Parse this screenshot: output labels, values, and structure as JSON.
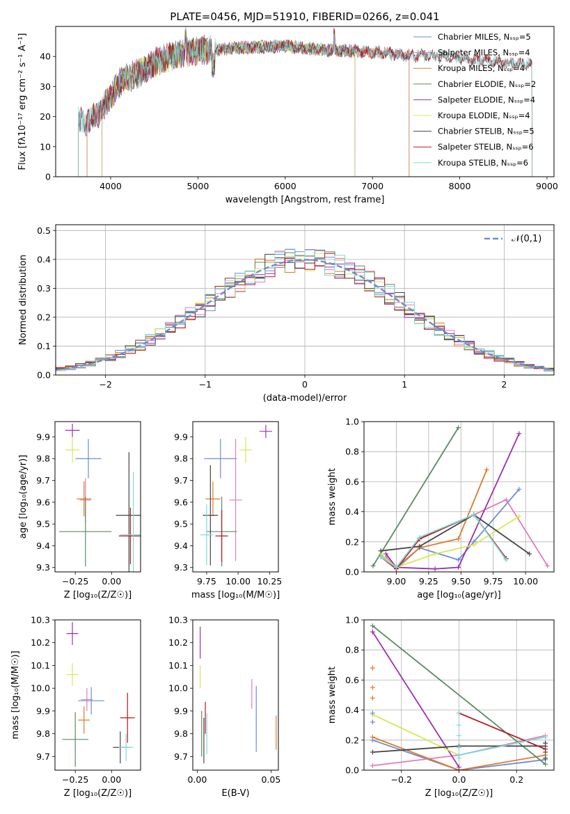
{
  "title": "PLATE=0456, MJD=51910, FIBERID=0266, z=0.041",
  "colors": {
    "chabrier_miles": "#6a8bd9",
    "salpeter_miles": "#e27cb8",
    "kroupa_miles": "#e07a28",
    "chabrier_elodie": "#5a8a64",
    "salpeter_elodie": "#9a2fb0",
    "kroupa_elodie": "#d5e84f",
    "chabrier_stelib": "#444444",
    "salpeter_stelib": "#b8161e",
    "kroupa_stelib": "#7fd9d9"
  },
  "chart_data": [
    {
      "id": "spectrum",
      "type": "line",
      "xlabel": "wavelength [Angstrom, rest frame]",
      "ylabel": "Flux [fλ10⁻¹⁷ erg cm⁻² s⁻¹ A⁻¹]",
      "xlim": [
        3370,
        9080
      ],
      "ylim": [
        0,
        50
      ],
      "xticks": [
        4000,
        5000,
        6000,
        7000,
        8000,
        9000
      ],
      "yticks": [
        0,
        10,
        20,
        30,
        40
      ],
      "legend_position": "top-right",
      "series": [
        {
          "name": "Chabrier MILES, Nₛₛₚ=5",
          "color_key": "chabrier_miles",
          "x_range": [
            3730,
            7420
          ]
        },
        {
          "name": "Salpeter MILES, Nₛₛₚ=4",
          "color_key": "salpeter_miles",
          "x_range": [
            3730,
            7420
          ]
        },
        {
          "name": "Kroupa MILES, Nₛₛₚ=4",
          "color_key": "kroupa_miles",
          "x_range": [
            3730,
            7420
          ]
        },
        {
          "name": "Chabrier ELODIE, Nₛₛₚ=2",
          "color_key": "chabrier_elodie",
          "x_range": [
            3900,
            6800
          ]
        },
        {
          "name": "Salpeter ELODIE, Nₛₛₚ=4",
          "color_key": "salpeter_elodie",
          "x_range": [
            3900,
            6800
          ]
        },
        {
          "name": "Kroupa ELODIE, Nₛₛₚ=4",
          "color_key": "kroupa_elodie",
          "x_range": [
            3900,
            6800
          ]
        },
        {
          "name": "Chabrier STELIB, Nₛₛₚ=5",
          "color_key": "chabrier_stelib",
          "x_range": [
            3630,
            8830
          ]
        },
        {
          "name": "Salpeter STELIB, Nₛₛₚ=6",
          "color_key": "salpeter_stelib",
          "x_range": [
            3630,
            8830
          ]
        },
        {
          "name": "Kroupa STELIB, Nₛₛₚ=6",
          "color_key": "kroupa_stelib",
          "x_range": [
            3630,
            8830
          ]
        }
      ],
      "continuum": {
        "x": [
          3620,
          3700,
          3800,
          3900,
          4000,
          4100,
          4200,
          4300,
          4400,
          4500,
          4700,
          5000,
          5300,
          5600,
          6000,
          6300,
          6600,
          7000,
          7400,
          7800,
          8200,
          8500,
          8830
        ],
        "y": [
          19,
          18,
          20,
          22,
          27,
          31,
          33,
          34,
          36,
          38,
          40,
          42,
          42.5,
          43,
          43.5,
          42.5,
          42,
          41.5,
          40.5,
          40,
          39,
          38,
          37.5
        ]
      },
      "drop_to_zero_x": [
        3730,
        3900,
        6800,
        7420
      ]
    },
    {
      "id": "residuals",
      "type": "step",
      "xlabel": "(data-model)/error",
      "ylabel": "Normed distribution",
      "xlim": [
        -2.5,
        2.5
      ],
      "ylim": [
        0,
        0.52
      ],
      "xticks": [
        -2,
        -1,
        0,
        1,
        2
      ],
      "yticks": [
        0.0,
        0.1,
        0.2,
        0.3,
        0.4,
        0.5
      ],
      "grid": true,
      "legend_position": "top-right",
      "gaussian_label": "𝒩(0,1)",
      "gaussian_color": "#6a8bd9",
      "bin_width": 0.1,
      "bins_start": -2.5,
      "base_density_histogram": [
        0.018,
        0.022,
        0.028,
        0.034,
        0.042,
        0.05,
        0.058,
        0.068,
        0.08,
        0.09,
        0.104,
        0.118,
        0.132,
        0.148,
        0.165,
        0.182,
        0.2,
        0.218,
        0.236,
        0.254,
        0.272,
        0.29,
        0.308,
        0.324,
        0.34,
        0.355,
        0.368,
        0.38,
        0.39,
        0.397,
        0.4,
        0.402,
        0.4,
        0.396,
        0.39,
        0.38,
        0.368,
        0.355,
        0.34,
        0.324,
        0.308,
        0.29,
        0.272,
        0.254,
        0.236,
        0.218,
        0.2,
        0.182,
        0.165,
        0.148,
        0.132
      ]
    },
    {
      "id": "age_vs_Z",
      "type": "errorbar",
      "xlabel": "Z [log₁₀(Z/Z☉)]",
      "ylabel": "age  [log₁₀(age/yr)]",
      "xlim": [
        -0.39,
        0.2
      ],
      "ylim": [
        9.28,
        9.97
      ],
      "xticks": [
        -0.25,
        0.0
      ],
      "xtick_labels": [
        "−0.25",
        "0.00"
      ],
      "yticks": [
        9.3,
        9.4,
        9.5,
        9.6,
        9.7,
        9.8,
        9.9
      ],
      "points": [
        {
          "k": "chabrier_miles",
          "x": -0.16,
          "xerr": 0.09,
          "y": 9.8,
          "yerr": 0.09
        },
        {
          "k": "salpeter_miles",
          "x": -0.18,
          "xerr": 0.04,
          "y": 9.61,
          "yerr": 0.1
        },
        {
          "k": "kroupa_miles",
          "x": -0.19,
          "xerr": 0.05,
          "y": 9.615,
          "yerr": 0.08
        },
        {
          "k": "chabrier_elodie",
          "x": -0.18,
          "xerr": 0.18,
          "y": 9.465,
          "yerr": 0.16
        },
        {
          "k": "salpeter_elodie",
          "x": -0.27,
          "xerr": 0.05,
          "y": 9.93,
          "yerr": 0.03
        },
        {
          "k": "kroupa_elodie",
          "x": -0.27,
          "xerr": 0.05,
          "y": 9.84,
          "yerr": 0.06
        },
        {
          "k": "chabrier_stelib",
          "x": 0.12,
          "xerr": 0.09,
          "y": 9.54,
          "yerr": 0.29
        },
        {
          "k": "salpeter_stelib",
          "x": 0.13,
          "xerr": 0.08,
          "y": 9.445,
          "yerr": 0.13
        },
        {
          "k": "kroupa_stelib",
          "x": 0.15,
          "xerr": 0.09,
          "y": 9.45,
          "yerr": 0.29
        }
      ]
    },
    {
      "id": "age_vs_mass",
      "type": "errorbar",
      "xlabel": "mass [log₁₀(M/M☉)]",
      "ylabel": "",
      "xlim": [
        9.64,
        10.32
      ],
      "ylim": [
        9.28,
        9.97
      ],
      "xticks": [
        9.75,
        10.0,
        10.25
      ],
      "xtick_labels": [
        "9.75",
        "10.00",
        "10.25"
      ],
      "yticks": [
        9.3,
        9.4,
        9.5,
        9.6,
        9.7,
        9.8,
        9.9
      ],
      "points": [
        {
          "k": "chabrier_miles",
          "x": 9.86,
          "xerr": 0.13,
          "y": 9.8,
          "yerr": 0.09
        },
        {
          "k": "salpeter_miles",
          "x": 9.98,
          "xerr": 0.05,
          "y": 9.61,
          "yerr": 0.28
        },
        {
          "k": "kroupa_miles",
          "x": 9.8,
          "xerr": 0.06,
          "y": 9.615,
          "yerr": 0.08
        },
        {
          "k": "chabrier_elodie",
          "x": 9.87,
          "xerr": 0.12,
          "y": 9.465,
          "yerr": 0.16
        },
        {
          "k": "salpeter_elodie",
          "x": 10.22,
          "xerr": 0.05,
          "y": 9.925,
          "yerr": 0.03
        },
        {
          "k": "kroupa_elodie",
          "x": 10.06,
          "xerr": 0.05,
          "y": 9.84,
          "yerr": 0.06
        },
        {
          "k": "chabrier_stelib",
          "x": 9.78,
          "xerr": 0.06,
          "y": 9.54,
          "yerr": 0.23
        },
        {
          "k": "salpeter_stelib",
          "x": 9.87,
          "xerr": 0.05,
          "y": 9.445,
          "yerr": 0.12
        },
        {
          "k": "kroupa_stelib",
          "x": 9.75,
          "xerr": 0.05,
          "y": 9.45,
          "yerr": 0.14
        }
      ]
    },
    {
      "id": "weight_vs_age",
      "type": "line",
      "xlabel": "age  [log₁₀(age/yr)]",
      "ylabel": "mass weight",
      "xlim": [
        8.75,
        10.22
      ],
      "ylim": [
        0,
        1
      ],
      "xticks": [
        9.0,
        9.25,
        9.5,
        9.75,
        10.0
      ],
      "xtick_labels": [
        "9.00",
        "9.25",
        "9.50",
        "9.75",
        "10.00"
      ],
      "yticks": [
        0.0,
        0.2,
        0.4,
        0.6,
        0.8,
        1.0
      ],
      "grid": true,
      "series": [
        {
          "k": "chabrier_miles",
          "x": [
            8.88,
            9.0,
            9.18,
            9.48,
            9.6,
            9.95
          ],
          "y": [
            0.12,
            0.02,
            0.16,
            0.08,
            0.2,
            0.55
          ]
        },
        {
          "k": "salpeter_miles",
          "x": [
            8.92,
            9.0,
            9.18,
            9.6,
            9.85,
            10.17
          ],
          "y": [
            0.1,
            0.03,
            0.22,
            0.38,
            0.48,
            0.04
          ]
        },
        {
          "k": "kroupa_miles",
          "x": [
            8.88,
            9.0,
            9.18,
            9.48,
            9.7
          ],
          "y": [
            0.1,
            0.03,
            0.16,
            0.22,
            0.68
          ]
        },
        {
          "k": "chabrier_elodie",
          "x": [
            8.82,
            9.48
          ],
          "y": [
            0.04,
            0.96
          ]
        },
        {
          "k": "salpeter_elodie",
          "x": [
            8.92,
            9.0,
            9.3,
            9.48,
            9.95
          ],
          "y": [
            0.12,
            0.03,
            0.02,
            0.03,
            0.92
          ]
        },
        {
          "k": "kroupa_elodie",
          "x": [
            8.88,
            9.0,
            9.3,
            9.6,
            9.95
          ],
          "y": [
            0.12,
            0.03,
            0.12,
            0.18,
            0.37
          ]
        },
        {
          "k": "chabrier_stelib",
          "x": [
            8.88,
            9.18,
            9.6,
            10.03
          ],
          "y": [
            0.14,
            0.17,
            0.38,
            0.12
          ]
        },
        {
          "k": "salpeter_stelib",
          "x": [
            8.88,
            9.0,
            9.18,
            9.6,
            9.85
          ],
          "y": [
            0.1,
            0.02,
            0.22,
            0.38,
            0.09
          ]
        },
        {
          "k": "kroupa_stelib",
          "x": [
            8.88,
            9.0,
            9.18,
            9.6,
            9.85
          ],
          "y": [
            0.1,
            0.03,
            0.23,
            0.38,
            0.08
          ]
        }
      ]
    },
    {
      "id": "mass_vs_Z",
      "type": "errorbar",
      "xlabel": "Z [log₁₀(Z/Z☉)]",
      "ylabel": "mass [log₁₀(M/M☉)]",
      "xlim": [
        -0.39,
        0.2
      ],
      "ylim": [
        9.64,
        10.3
      ],
      "xticks": [
        -0.25,
        0.0
      ],
      "xtick_labels": [
        "−0.25",
        "0.00"
      ],
      "yticks": [
        9.7,
        9.8,
        9.9,
        10.0,
        10.1,
        10.2,
        10.3
      ],
      "points": [
        {
          "k": "chabrier_miles",
          "x": -0.14,
          "xerr": 0.09,
          "y": 9.945,
          "yerr": 0.06
        },
        {
          "k": "salpeter_miles",
          "x": -0.17,
          "xerr": 0.04,
          "y": 9.95,
          "yerr": 0.05
        },
        {
          "k": "kroupa_miles",
          "x": -0.19,
          "xerr": 0.04,
          "y": 9.86,
          "yerr": 0.06
        },
        {
          "k": "chabrier_elodie",
          "x": -0.25,
          "xerr": 0.09,
          "y": 9.775,
          "yerr": 0.12
        },
        {
          "k": "salpeter_elodie",
          "x": -0.27,
          "xerr": 0.04,
          "y": 10.24,
          "yerr": 0.05
        },
        {
          "k": "kroupa_elodie",
          "x": -0.27,
          "xerr": 0.04,
          "y": 10.06,
          "yerr": 0.05
        },
        {
          "k": "chabrier_stelib",
          "x": 0.06,
          "xerr": 0.05,
          "y": 9.74,
          "yerr": 0.07
        },
        {
          "k": "salpeter_stelib",
          "x": 0.11,
          "xerr": 0.05,
          "y": 9.87,
          "yerr": 0.11
        },
        {
          "k": "kroupa_stelib",
          "x": 0.1,
          "xerr": 0.05,
          "y": 9.74,
          "yerr": 0.06
        }
      ]
    },
    {
      "id": "mass_vs_ebv",
      "type": "errorbar",
      "xlabel": "E(B-V)",
      "ylabel": "",
      "xlim": [
        -0.003,
        0.055
      ],
      "ylim": [
        9.64,
        10.3
      ],
      "xticks": [
        0.0,
        0.05
      ],
      "xtick_labels": [
        "0.00",
        "0.05"
      ],
      "yticks": [
        9.7,
        9.8,
        9.9,
        10.0,
        10.1,
        10.2,
        10.3
      ],
      "points": [
        {
          "k": "chabrier_miles",
          "x": 0.04,
          "xerr": 0.0,
          "y": 9.865,
          "yerr": 0.145
        },
        {
          "k": "salpeter_miles",
          "x": 0.037,
          "xerr": 0.0,
          "y": 9.975,
          "yerr": 0.065
        },
        {
          "k": "kroupa_miles",
          "x": 0.0535,
          "xerr": 0.0,
          "y": 9.805,
          "yerr": 0.075
        },
        {
          "k": "chabrier_elodie",
          "x": 0.003,
          "xerr": 0.0,
          "y": 9.8,
          "yerr": 0.1
        },
        {
          "k": "salpeter_elodie",
          "x": 0.002,
          "xerr": 0.0,
          "y": 10.2,
          "yerr": 0.07
        },
        {
          "k": "kroupa_elodie",
          "x": 0.002,
          "xerr": 0.0,
          "y": 10.05,
          "yerr": 0.05
        },
        {
          "k": "chabrier_stelib",
          "x": 0.0045,
          "xerr": 0.0,
          "y": 9.77,
          "yerr": 0.1
        },
        {
          "k": "salpeter_stelib",
          "x": 0.0055,
          "xerr": 0.0,
          "y": 9.87,
          "yerr": 0.07
        },
        {
          "k": "kroupa_stelib",
          "x": 0.0065,
          "xerr": 0.0,
          "y": 9.8,
          "yerr": 0.09
        }
      ]
    },
    {
      "id": "weight_vs_Z",
      "type": "line",
      "xlabel": "Z [log₁₀(Z/Z☉)]",
      "ylabel": "mass weight",
      "xlim": [
        -0.33,
        0.33
      ],
      "ylim": [
        0,
        1
      ],
      "xticks": [
        -0.2,
        0.0,
        0.2
      ],
      "xtick_labels": [
        "−0.2",
        "0.0",
        "0.2"
      ],
      "yticks": [
        0.0,
        0.2,
        0.4,
        0.6,
        0.8,
        1.0
      ],
      "grid": true,
      "series": [
        {
          "k": "chabrier_miles",
          "x": [
            -0.3,
            0.0,
            0.3
          ],
          "y": [
            0.2,
            0.0,
            0.07
          ]
        },
        {
          "k": "salpeter_miles",
          "x": [
            -0.3,
            0.0,
            0.3
          ],
          "y": [
            0.03,
            0.1,
            0.23
          ]
        },
        {
          "k": "kroupa_miles",
          "x": [
            -0.3,
            0.0,
            0.3
          ],
          "y": [
            0.22,
            0.0,
            0.1
          ]
        },
        {
          "k": "chabrier_elodie",
          "x": [
            -0.3,
            0.3
          ],
          "y": [
            0.96,
            0.04
          ]
        },
        {
          "k": "salpeter_elodie",
          "x": [
            -0.3,
            0.0
          ],
          "y": [
            0.92,
            0.02
          ]
        },
        {
          "k": "kroupa_elodie",
          "x": [
            -0.3,
            0.0
          ],
          "y": [
            0.37,
            0.1
          ]
        },
        {
          "k": "chabrier_stelib",
          "x": [
            -0.3,
            0.0,
            0.3
          ],
          "y": [
            0.12,
            0.16,
            0.16
          ]
        },
        {
          "k": "salpeter_stelib",
          "x": [
            0.0,
            0.3
          ],
          "y": [
            0.38,
            0.14
          ]
        },
        {
          "k": "kroupa_stelib",
          "x": [
            0.0,
            0.3
          ],
          "y": [
            0.1,
            0.22
          ]
        }
      ],
      "extra_marks": [
        {
          "k": "kroupa_miles",
          "x": -0.3,
          "y": [
            0.68,
            0.55,
            0.48
          ]
        },
        {
          "k": "chabrier_miles",
          "x": -0.3,
          "y": [
            0.38,
            0.32
          ]
        },
        {
          "k": "kroupa_stelib",
          "x": 0.0,
          "y": [
            0.38,
            0.3,
            0.23,
            0.15,
            0.08
          ]
        },
        {
          "k": "chabrier_stelib",
          "x": 0.3,
          "y": [
            0.18,
            0.12,
            0.08
          ]
        }
      ]
    }
  ]
}
